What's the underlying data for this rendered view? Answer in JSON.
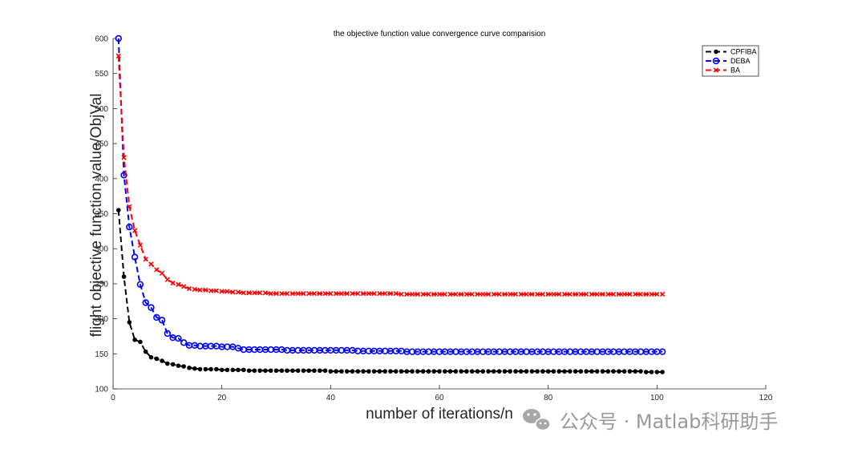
{
  "chart_data": {
    "type": "line",
    "title": "the objective function value convergence curve comparision",
    "xlabel": "number of iterations/n",
    "ylabel": "flight objective function value/ObjVal",
    "xlim": [
      0,
      120
    ],
    "ylim": [
      100,
      600
    ],
    "xticks": [
      0,
      20,
      40,
      60,
      80,
      100,
      120
    ],
    "yticks": [
      100,
      150,
      200,
      250,
      300,
      350,
      400,
      450,
      500,
      550,
      600
    ],
    "grid": false,
    "legend_position": "top-right",
    "x": [
      1,
      2,
      3,
      4,
      5,
      6,
      7,
      8,
      9,
      10,
      11,
      12,
      13,
      14,
      15,
      16,
      17,
      18,
      19,
      20,
      21,
      22,
      23,
      24,
      25,
      26,
      27,
      28,
      29,
      30,
      31,
      32,
      33,
      34,
      35,
      36,
      37,
      38,
      39,
      40,
      41,
      42,
      43,
      44,
      45,
      46,
      47,
      48,
      49,
      50,
      51,
      52,
      53,
      54,
      55,
      56,
      57,
      58,
      59,
      60,
      61,
      62,
      63,
      64,
      65,
      66,
      67,
      68,
      69,
      70,
      71,
      72,
      73,
      74,
      75,
      76,
      77,
      78,
      79,
      80,
      81,
      82,
      83,
      84,
      85,
      86,
      87,
      88,
      89,
      90,
      91,
      92,
      93,
      94,
      95,
      96,
      97,
      98,
      99,
      100,
      101
    ],
    "series": [
      {
        "name": "CPFIBA",
        "color": "#000000",
        "marker": "dot",
        "values": [
          355,
          260,
          195,
          170,
          167,
          153,
          145,
          143,
          140,
          136,
          135,
          133,
          132,
          130,
          129,
          128,
          128,
          128,
          128,
          127,
          127,
          127,
          127,
          127,
          126,
          126,
          126,
          126,
          126,
          126,
          126,
          126,
          126,
          126,
          126,
          126,
          126,
          126,
          126,
          125,
          125,
          125,
          125,
          125,
          125,
          125,
          125,
          125,
          125,
          125,
          125,
          125,
          125,
          125,
          125,
          125,
          125,
          125,
          125,
          125,
          125,
          125,
          125,
          125,
          125,
          125,
          125,
          125,
          125,
          125,
          125,
          125,
          125,
          125,
          125,
          125,
          125,
          125,
          125,
          125,
          125,
          125,
          125,
          125,
          125,
          125,
          125,
          125,
          125,
          125,
          125,
          125,
          125,
          125,
          125,
          125,
          125,
          124,
          124,
          124,
          124
        ]
      },
      {
        "name": "DEBA",
        "color": "#0000ff",
        "marker": "circle",
        "values": [
          600,
          405,
          331,
          288,
          249,
          223,
          216,
          202,
          198,
          179,
          173,
          172,
          166,
          162,
          162,
          161,
          161,
          161,
          161,
          160,
          160,
          160,
          158,
          156,
          156,
          156,
          156,
          156,
          156,
          156,
          156,
          155,
          155,
          155,
          155,
          155,
          155,
          155,
          155,
          155,
          155,
          155,
          155,
          155,
          154,
          154,
          154,
          154,
          154,
          154,
          154,
          154,
          154,
          153,
          153,
          153,
          153,
          153,
          153,
          153,
          153,
          153,
          153,
          153,
          153,
          153,
          153,
          153,
          153,
          153,
          153,
          153,
          153,
          153,
          153,
          153,
          153,
          153,
          153,
          153,
          153,
          153,
          153,
          153,
          153,
          153,
          153,
          153,
          153,
          153,
          153,
          153,
          153,
          153,
          153,
          153,
          153,
          153,
          153,
          153,
          153
        ]
      },
      {
        "name": "BA",
        "color": "#ff0000",
        "marker": "x",
        "values": [
          575,
          430,
          360,
          326,
          305,
          285,
          278,
          270,
          265,
          256,
          251,
          249,
          246,
          243,
          242,
          241,
          241,
          240,
          240,
          239,
          239,
          238,
          238,
          237,
          237,
          237,
          237,
          237,
          236,
          236,
          236,
          236,
          236,
          236,
          236,
          236,
          236,
          236,
          236,
          236,
          236,
          236,
          236,
          236,
          236,
          236,
          236,
          236,
          236,
          236,
          236,
          236,
          235,
          235,
          235,
          235,
          235,
          235,
          235,
          235,
          235,
          235,
          235,
          235,
          235,
          235,
          235,
          235,
          235,
          235,
          235,
          235,
          235,
          235,
          235,
          235,
          235,
          235,
          235,
          235,
          235,
          235,
          235,
          235,
          235,
          235,
          235,
          235,
          235,
          235,
          235,
          235,
          235,
          235,
          235,
          235,
          235,
          235,
          235,
          235,
          235
        ]
      }
    ]
  },
  "watermark": {
    "text": "公众号 · Matlab科研助手",
    "icon": "wechat-icon"
  }
}
